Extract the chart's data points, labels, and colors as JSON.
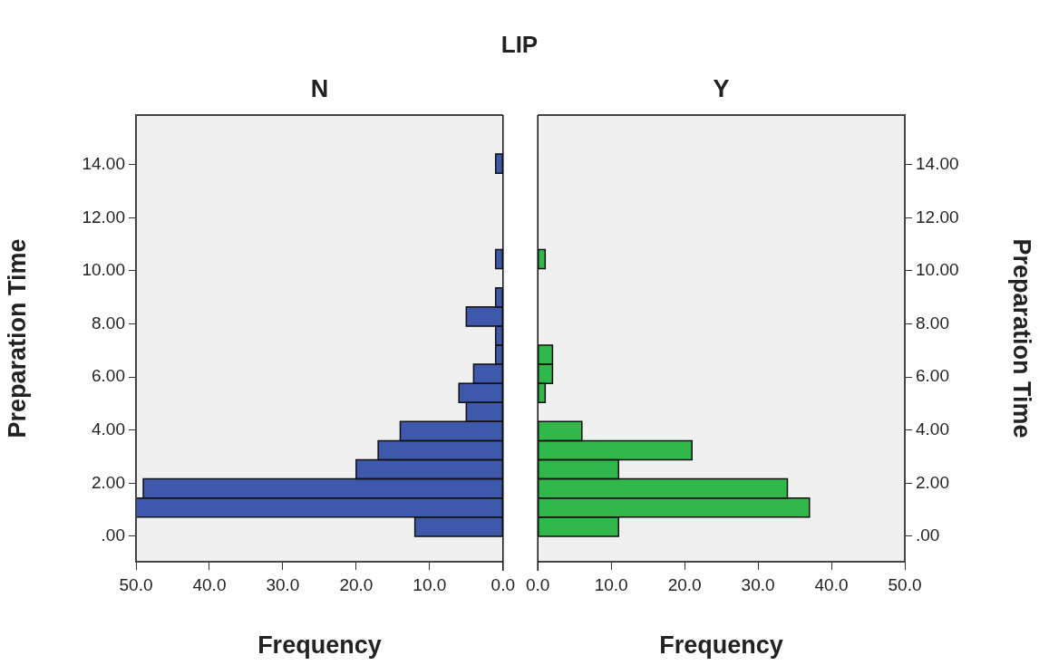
{
  "chart_data": [
    {
      "type": "histogram",
      "title": "LIP",
      "subtitle": "N",
      "xlabel": "Frequency",
      "ylabel": "Preparation Time",
      "orientation": "horizontal",
      "color": "#3e58ab",
      "bins": [
        0,
        0.72,
        1.44,
        2.16,
        2.88,
        3.6,
        4.32,
        5.04,
        5.76,
        6.48,
        7.2,
        7.92,
        8.64,
        9.36,
        10.08,
        10.8,
        11.52,
        12.24,
        12.96,
        13.68,
        14.4
      ],
      "values": [
        12,
        50,
        49,
        20,
        17,
        14,
        5,
        6,
        4,
        1,
        1,
        5,
        1,
        0,
        1,
        0,
        0,
        0,
        0,
        1
      ],
      "xlim": [
        50,
        0
      ],
      "xticks": [
        {
          "value": 50,
          "label": "50.0"
        },
        {
          "value": 40,
          "label": "40.0"
        },
        {
          "value": 30,
          "label": "30.0"
        },
        {
          "value": 20,
          "label": "20.0"
        },
        {
          "value": 10,
          "label": "10.0"
        },
        {
          "value": 0,
          "label": "0.0"
        }
      ],
      "ylim": [
        -0.96,
        15.87
      ],
      "yticks": [
        {
          "value": 0,
          "label": ".00"
        },
        {
          "value": 2,
          "label": "2.00"
        },
        {
          "value": 4,
          "label": "4.00"
        },
        {
          "value": 6,
          "label": "6.00"
        },
        {
          "value": 8,
          "label": "8.00"
        },
        {
          "value": 10,
          "label": "10.00"
        },
        {
          "value": 12,
          "label": "12.00"
        },
        {
          "value": 14,
          "label": "14.00"
        }
      ]
    },
    {
      "type": "histogram",
      "subtitle": "Y",
      "xlabel": "Frequency",
      "ylabel": "Preparation Time",
      "orientation": "horizontal",
      "color": "#31b84b",
      "bins": [
        0,
        0.72,
        1.44,
        2.16,
        2.88,
        3.6,
        4.32,
        5.04,
        5.76,
        6.48,
        7.2,
        7.92,
        8.64,
        9.36,
        10.08,
        10.8,
        11.52,
        12.24,
        12.96,
        13.68,
        14.4
      ],
      "values": [
        11,
        37,
        34,
        11,
        21,
        6,
        0,
        1,
        2,
        2,
        0,
        0,
        0,
        0,
        1,
        0,
        0,
        0,
        0,
        0
      ],
      "xlim": [
        0,
        50
      ],
      "xticks": [
        {
          "value": 0,
          "label": "0.0"
        },
        {
          "value": 10,
          "label": "10.0"
        },
        {
          "value": 20,
          "label": "20.0"
        },
        {
          "value": 30,
          "label": "30.0"
        },
        {
          "value": 40,
          "label": "40.0"
        },
        {
          "value": 50,
          "label": "50.0"
        }
      ],
      "ylim": [
        -0.96,
        15.87
      ],
      "yticks": [
        {
          "value": 0,
          "label": ".00"
        },
        {
          "value": 2,
          "label": "2.00"
        },
        {
          "value": 4,
          "label": "4.00"
        },
        {
          "value": 6,
          "label": "6.00"
        },
        {
          "value": 8,
          "label": "8.00"
        },
        {
          "value": 10,
          "label": "10.00"
        },
        {
          "value": 12,
          "label": "12.00"
        },
        {
          "value": 14,
          "label": "14.00"
        }
      ]
    }
  ]
}
